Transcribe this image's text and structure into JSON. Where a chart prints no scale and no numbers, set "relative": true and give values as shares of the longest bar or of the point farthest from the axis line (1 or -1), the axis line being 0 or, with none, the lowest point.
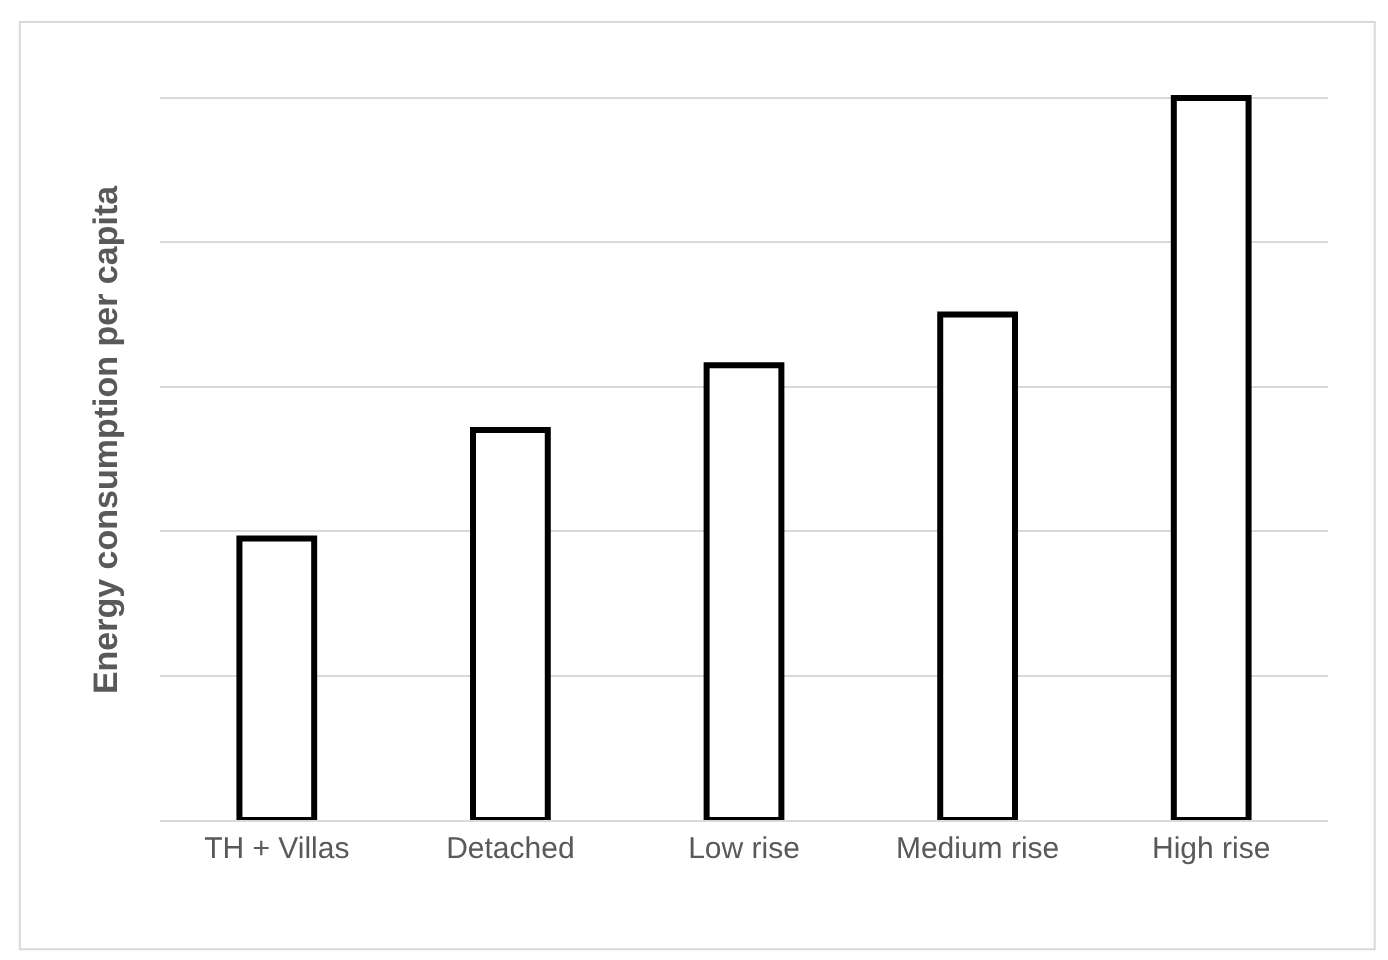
{
  "chart_data": {
    "type": "bar",
    "relative": true,
    "ylabel": "Energy consumption per capita",
    "categories": [
      "TH + Villas",
      "Detached",
      "Low rise",
      "Medium rise",
      "High rise"
    ],
    "values": [
      0.39,
      0.54,
      0.63,
      0.7,
      1
    ],
    "color": "#ffffff",
    "grid": "y"
  }
}
